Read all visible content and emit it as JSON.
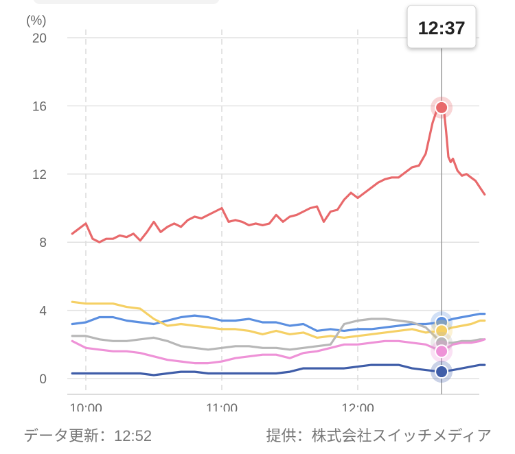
{
  "chart_data": {
    "type": "line",
    "y_unit": "(%)",
    "ylim": [
      0,
      20
    ],
    "y_ticks": [
      0,
      4,
      8,
      12,
      16,
      20
    ],
    "x_range_minutes": [
      594,
      776
    ],
    "x_ticks": [
      {
        "label": "10:00",
        "minute": 600
      },
      {
        "label": "11:00",
        "minute": 660
      },
      {
        "label": "12:00",
        "minute": 720
      }
    ],
    "grid": true,
    "tooltip": {
      "time": "12:37",
      "minute": 757
    },
    "series": [
      {
        "color": "#e8696b",
        "x": [
          594,
          597,
          600,
          603,
          606,
          609,
          612,
          615,
          618,
          621,
          624,
          627,
          630,
          633,
          636,
          639,
          642,
          645,
          648,
          651,
          654,
          657,
          660,
          663,
          666,
          669,
          672,
          675,
          678,
          681,
          684,
          687,
          690,
          693,
          696,
          699,
          702,
          705,
          708,
          711,
          714,
          717,
          720,
          723,
          726,
          729,
          732,
          735,
          738,
          741,
          744,
          747,
          750,
          753,
          755,
          757,
          758,
          759,
          760,
          761,
          762,
          764,
          766,
          768,
          770,
          772,
          774,
          776
        ],
        "y": [
          8.5,
          8.8,
          9.1,
          8.2,
          8.0,
          8.2,
          8.2,
          8.4,
          8.3,
          8.5,
          8.1,
          8.6,
          9.2,
          8.6,
          8.9,
          9.1,
          8.9,
          9.3,
          9.5,
          9.4,
          9.6,
          9.8,
          10.0,
          9.2,
          9.3,
          9.2,
          9.0,
          9.1,
          9.0,
          9.1,
          9.6,
          9.2,
          9.5,
          9.6,
          9.8,
          10.0,
          10.1,
          9.2,
          9.8,
          9.9,
          10.5,
          10.9,
          10.6,
          10.9,
          11.2,
          11.5,
          11.7,
          11.8,
          11.8,
          12.1,
          12.4,
          12.5,
          13.2,
          15.0,
          15.8,
          15.9,
          15.8,
          14.5,
          13.0,
          12.7,
          12.9,
          12.2,
          11.9,
          12.0,
          11.8,
          11.6,
          11.2,
          10.8
        ]
      },
      {
        "color": "#5b8fe0",
        "x": [
          594,
          600,
          606,
          612,
          618,
          624,
          630,
          636,
          642,
          648,
          654,
          660,
          666,
          672,
          678,
          684,
          690,
          696,
          702,
          708,
          714,
          720,
          726,
          732,
          738,
          744,
          750,
          757,
          762,
          766,
          770,
          774,
          776
        ],
        "y": [
          3.2,
          3.3,
          3.6,
          3.6,
          3.4,
          3.3,
          3.2,
          3.4,
          3.6,
          3.7,
          3.6,
          3.4,
          3.4,
          3.5,
          3.3,
          3.3,
          3.1,
          3.2,
          2.8,
          2.9,
          2.8,
          2.9,
          2.9,
          3.0,
          3.1,
          3.2,
          3.2,
          3.3,
          3.5,
          3.6,
          3.7,
          3.8,
          3.8
        ]
      },
      {
        "color": "#f5d065",
        "x": [
          594,
          600,
          606,
          612,
          618,
          624,
          630,
          636,
          642,
          648,
          654,
          660,
          666,
          672,
          678,
          684,
          690,
          696,
          702,
          708,
          714,
          720,
          726,
          732,
          738,
          744,
          750,
          757,
          762,
          766,
          770,
          774,
          776
        ],
        "y": [
          4.5,
          4.4,
          4.4,
          4.4,
          4.2,
          4.1,
          3.5,
          3.1,
          3.2,
          3.1,
          3.0,
          2.9,
          2.9,
          2.8,
          2.6,
          2.8,
          2.6,
          2.7,
          2.4,
          2.5,
          2.4,
          2.5,
          2.6,
          2.7,
          2.8,
          2.9,
          2.7,
          2.8,
          3.0,
          3.1,
          3.2,
          3.4,
          3.4
        ]
      },
      {
        "color": "#b7b7b7",
        "x": [
          594,
          600,
          606,
          612,
          618,
          624,
          630,
          636,
          642,
          648,
          654,
          660,
          666,
          672,
          678,
          684,
          690,
          696,
          702,
          708,
          714,
          720,
          726,
          732,
          738,
          744,
          750,
          757,
          762,
          766,
          770,
          774,
          776
        ],
        "y": [
          2.5,
          2.5,
          2.3,
          2.2,
          2.2,
          2.3,
          2.4,
          2.2,
          1.9,
          1.8,
          1.7,
          1.8,
          1.9,
          1.9,
          1.8,
          1.8,
          1.7,
          1.8,
          1.9,
          2.0,
          3.2,
          3.4,
          3.5,
          3.5,
          3.4,
          3.3,
          3.0,
          2.1,
          2.1,
          2.2,
          2.2,
          2.3,
          2.3
        ]
      },
      {
        "color": "#ee92d7",
        "x": [
          594,
          600,
          606,
          612,
          618,
          624,
          630,
          636,
          642,
          648,
          654,
          660,
          666,
          672,
          678,
          684,
          690,
          696,
          702,
          708,
          714,
          720,
          726,
          732,
          738,
          744,
          750,
          757,
          762,
          766,
          770,
          774,
          776
        ],
        "y": [
          2.2,
          1.8,
          1.7,
          1.6,
          1.6,
          1.5,
          1.3,
          1.1,
          1.0,
          0.9,
          0.9,
          1.0,
          1.2,
          1.3,
          1.4,
          1.4,
          1.2,
          1.5,
          1.6,
          1.8,
          2.0,
          2.0,
          2.1,
          2.2,
          2.2,
          2.1,
          2.0,
          1.6,
          2.0,
          2.1,
          2.1,
          2.2,
          2.3
        ]
      },
      {
        "color": "#3f5da8",
        "x": [
          594,
          600,
          606,
          612,
          618,
          624,
          630,
          636,
          642,
          648,
          654,
          660,
          666,
          672,
          678,
          684,
          690,
          696,
          702,
          708,
          714,
          720,
          726,
          732,
          738,
          744,
          750,
          757,
          762,
          766,
          770,
          774,
          776
        ],
        "y": [
          0.3,
          0.3,
          0.3,
          0.3,
          0.3,
          0.3,
          0.2,
          0.3,
          0.4,
          0.4,
          0.3,
          0.3,
          0.3,
          0.3,
          0.3,
          0.3,
          0.4,
          0.6,
          0.6,
          0.6,
          0.6,
          0.7,
          0.8,
          0.8,
          0.8,
          0.6,
          0.5,
          0.4,
          0.5,
          0.6,
          0.7,
          0.8,
          0.8
        ]
      }
    ]
  },
  "footer": {
    "update_text": "データ更新：12:52",
    "provider_text": "提供：株式会社スイッチメディア"
  }
}
